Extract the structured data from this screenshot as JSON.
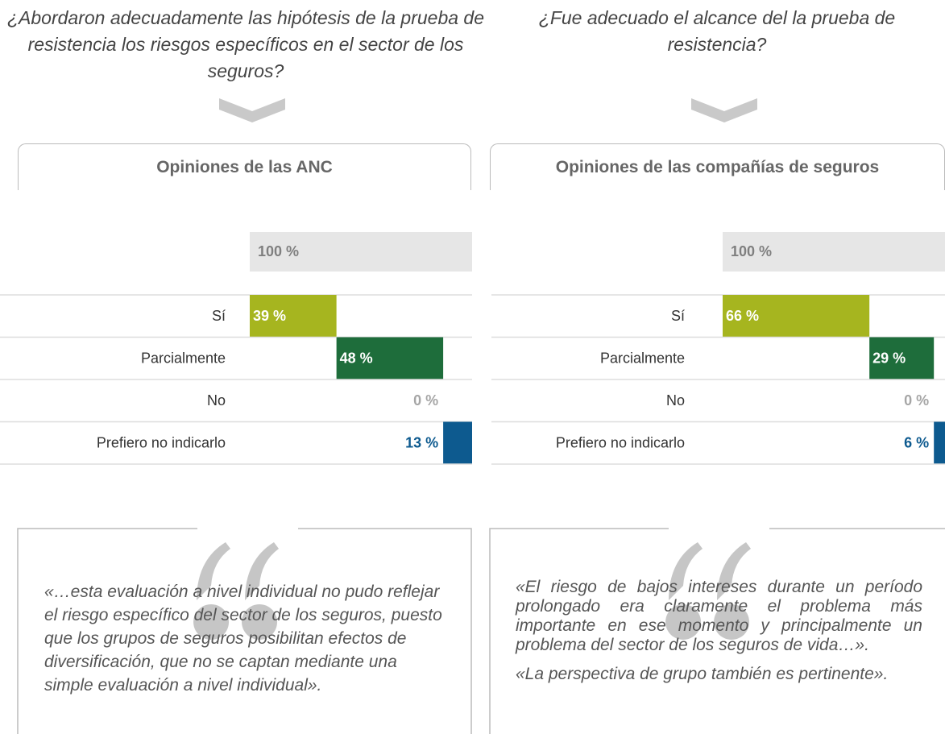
{
  "chart_data": [
    {
      "type": "bar",
      "title": "¿Abordaron adecuadamente las hipótesis de la prueba de resistencia los riesgos específicos en el sector de los seguros?",
      "subtitle": "Opiniones de las ANC",
      "total": 100,
      "total_label": "100 %",
      "categories": [
        "Sí",
        "Parcialmente",
        "No",
        "Prefiero no indicarlo"
      ],
      "values": [
        39,
        48,
        0,
        13
      ],
      "value_labels": [
        "39 %",
        "48 %",
        "0 %",
        "13 %"
      ],
      "colors": [
        "#a6b51f",
        "#1e6d3b",
        "#a6a6a6",
        "#0d5a8f"
      ],
      "xlim": [
        0,
        100
      ],
      "annotations": [
        "«…esta evaluación a nivel individual no pudo reflejar el riesgo específico del sector de los seguros, puesto que los grupos de seguros posibilitan efectos de diversificación, que no se captan mediante una simple evaluación a nivel individual»."
      ]
    },
    {
      "type": "bar",
      "title": "¿Fue adecuado el alcance del la prueba de resistencia?",
      "subtitle": "Opiniones de las compañías de seguros",
      "total": 100,
      "total_label": "100 %",
      "categories": [
        "Sí",
        "Parcialmente",
        "No",
        "Prefiero no indicarlo"
      ],
      "values": [
        66,
        29,
        0,
        6
      ],
      "value_labels": [
        "66 %",
        "29 %",
        "0 %",
        "6 %"
      ],
      "colors": [
        "#a6b51f",
        "#1e6d3b",
        "#a6a6a6",
        "#0d5a8f"
      ],
      "xlim": [
        0,
        100
      ],
      "annotations": [
        "«El riesgo de bajos intereses durante un período prolongado era claramente el problema más importante en ese momento y principalmente un problema del sector de los seguros de vida…».",
        "«La perspectiva de grupo también es pertinente»."
      ]
    }
  ]
}
